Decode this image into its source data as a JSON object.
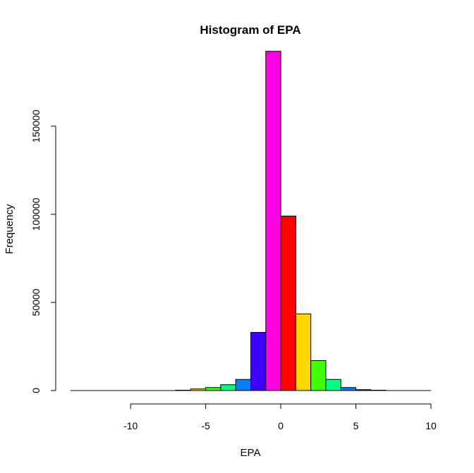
{
  "chart_data": {
    "type": "bar",
    "title": "Histogram of EPA",
    "xlabel": "EPA",
    "ylabel": "Frequency",
    "xlim": [
      -14,
      10
    ],
    "ylim": [
      0,
      190000
    ],
    "x_ticks": [
      -10,
      -5,
      0,
      5,
      10
    ],
    "x_tick_labels": [
      "-10",
      "-5",
      "0",
      "5",
      "10"
    ],
    "y_ticks": [
      0,
      50000,
      100000,
      150000
    ],
    "y_tick_labels": [
      "0",
      "50000",
      "100000",
      "150000"
    ],
    "bin_width": 1,
    "bins": [
      {
        "start": -14,
        "end": -13,
        "value": 0,
        "color": "#FF0000"
      },
      {
        "start": -13,
        "end": -12,
        "value": 0,
        "color": "#FFD700"
      },
      {
        "start": -12,
        "end": -11,
        "value": 0,
        "color": "#40FF00"
      },
      {
        "start": -11,
        "end": -10,
        "value": 0,
        "color": "#00FF80"
      },
      {
        "start": -10,
        "end": -9,
        "value": 0,
        "color": "#0080FF"
      },
      {
        "start": -9,
        "end": -8,
        "value": 0,
        "color": "#4000FF"
      },
      {
        "start": -8,
        "end": -7,
        "value": 0,
        "color": "#FF00E0"
      },
      {
        "start": -7,
        "end": -6,
        "value": 200,
        "color": "#FF0000"
      },
      {
        "start": -6,
        "end": -5,
        "value": 900,
        "color": "#FFD700"
      },
      {
        "start": -5,
        "end": -4,
        "value": 1700,
        "color": "#40FF00"
      },
      {
        "start": -4,
        "end": -3,
        "value": 3300,
        "color": "#00FF80"
      },
      {
        "start": -3,
        "end": -2,
        "value": 6300,
        "color": "#0080FF"
      },
      {
        "start": -2,
        "end": -1,
        "value": 33000,
        "color": "#4000FF"
      },
      {
        "start": -1,
        "end": 0,
        "value": 192500,
        "color": "#FF00E0"
      },
      {
        "start": 0,
        "end": 1,
        "value": 99000,
        "color": "#FF0000"
      },
      {
        "start": 1,
        "end": 2,
        "value": 43500,
        "color": "#FFD700"
      },
      {
        "start": 2,
        "end": 3,
        "value": 17000,
        "color": "#40FF00"
      },
      {
        "start": 3,
        "end": 4,
        "value": 6300,
        "color": "#00FF80"
      },
      {
        "start": 4,
        "end": 5,
        "value": 1700,
        "color": "#0080FF"
      },
      {
        "start": 5,
        "end": 6,
        "value": 500,
        "color": "#4000FF"
      },
      {
        "start": 6,
        "end": 7,
        "value": 200,
        "color": "#FF00E0"
      },
      {
        "start": 7,
        "end": 8,
        "value": 0,
        "color": "#FF0000"
      },
      {
        "start": 8,
        "end": 9,
        "value": 0,
        "color": "#FFD700"
      },
      {
        "start": 9,
        "end": 10,
        "value": 0,
        "color": "#40FF00"
      }
    ],
    "grid": false,
    "legend": "none"
  }
}
